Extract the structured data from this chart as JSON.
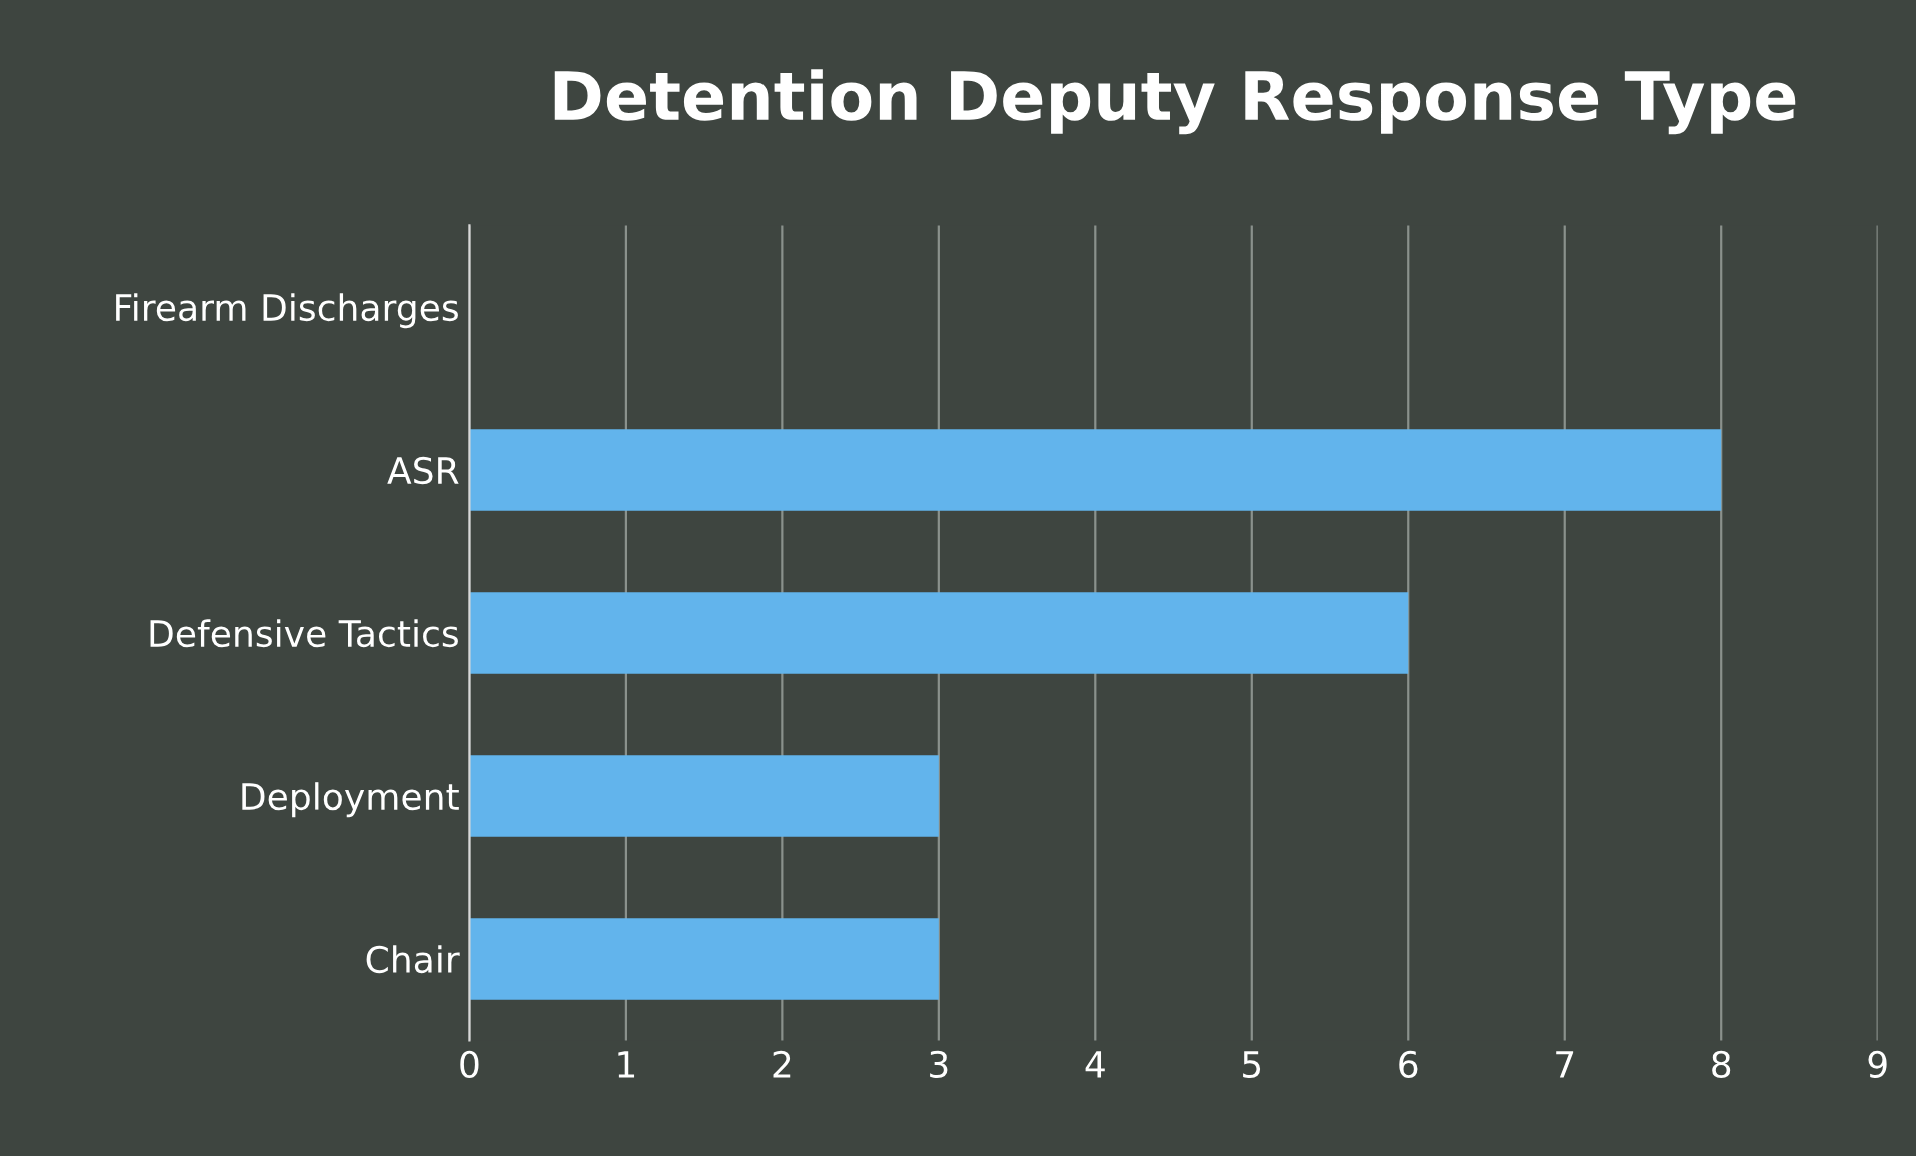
{
  "chart_data": {
    "type": "bar",
    "title": "Detention Deputy Response Type",
    "orientation": "horizontal",
    "categories": [
      "Firearm Discharges",
      "ASR",
      "Defensive Tactics",
      "Deployment",
      "Chair"
    ],
    "values": [
      0,
      8,
      6,
      3,
      3
    ],
    "color": "#62b4ec",
    "xlim": [
      0,
      9
    ],
    "xticks": [
      0,
      1,
      2,
      3,
      4,
      5,
      6,
      7,
      8,
      9
    ],
    "grid": "x",
    "legend": false
  }
}
